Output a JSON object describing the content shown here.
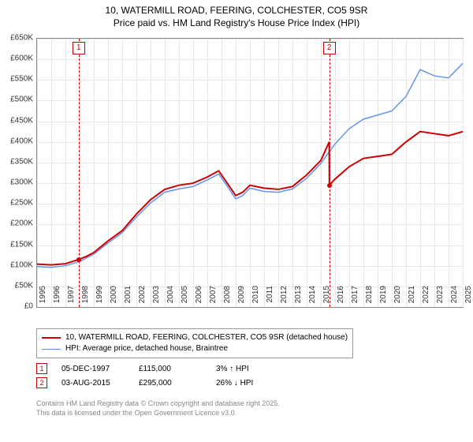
{
  "title_line1": "10, WATERMILL ROAD, FEERING, COLCHESTER, CO5 9SR",
  "title_line2": "Price paid vs. HM Land Registry's House Price Index (HPI)",
  "chart": {
    "type": "line",
    "background_color": "#ffffff",
    "grid_color": "#e8e8e8",
    "border_color": "#888888",
    "ylim": [
      0,
      650000
    ],
    "ytick_step": 50000,
    "yticks": [
      "£0",
      "£50K",
      "£100K",
      "£150K",
      "£200K",
      "£250K",
      "£300K",
      "£350K",
      "£400K",
      "£450K",
      "£500K",
      "£550K",
      "£600K",
      "£650K"
    ],
    "xlim": [
      1995,
      2025
    ],
    "xticks": [
      1995,
      1996,
      1997,
      1998,
      1999,
      2000,
      2001,
      2002,
      2003,
      2004,
      2005,
      2006,
      2007,
      2008,
      2009,
      2010,
      2011,
      2012,
      2013,
      2014,
      2015,
      2016,
      2017,
      2018,
      2019,
      2020,
      2021,
      2022,
      2023,
      2024,
      2025
    ],
    "label_fontsize": 10,
    "title_fontsize": 12,
    "line_width_price": 2,
    "line_width_hpi": 1.5,
    "series": {
      "price_paid": {
        "color": "#cc0000",
        "label": "10, WATERMILL ROAD, FEERING, COLCHESTER, CO5 9SR (detached house)",
        "points": [
          [
            1995.0,
            104000
          ],
          [
            1996.0,
            102000
          ],
          [
            1997.0,
            105000
          ],
          [
            1997.93,
            115000
          ],
          [
            1998.5,
            123000
          ],
          [
            1999.0,
            132000
          ],
          [
            2000.0,
            160000
          ],
          [
            2001.0,
            185000
          ],
          [
            2002.0,
            225000
          ],
          [
            2003.0,
            260000
          ],
          [
            2004.0,
            285000
          ],
          [
            2005.0,
            295000
          ],
          [
            2006.0,
            300000
          ],
          [
            2007.0,
            315000
          ],
          [
            2007.8,
            330000
          ],
          [
            2008.3,
            305000
          ],
          [
            2009.0,
            270000
          ],
          [
            2009.5,
            278000
          ],
          [
            2010.0,
            295000
          ],
          [
            2011.0,
            288000
          ],
          [
            2012.0,
            285000
          ],
          [
            2013.0,
            292000
          ],
          [
            2014.0,
            320000
          ],
          [
            2015.0,
            355000
          ],
          [
            2015.59,
            400000
          ],
          [
            2015.6,
            295000
          ],
          [
            2016.0,
            310000
          ],
          [
            2017.0,
            340000
          ],
          [
            2018.0,
            360000
          ],
          [
            2019.0,
            365000
          ],
          [
            2020.0,
            370000
          ],
          [
            2021.0,
            400000
          ],
          [
            2022.0,
            425000
          ],
          [
            2023.0,
            420000
          ],
          [
            2024.0,
            415000
          ],
          [
            2025.0,
            425000
          ]
        ]
      },
      "hpi": {
        "color": "#6495ed",
        "label": "HPI: Average price, detached house, Braintree",
        "points": [
          [
            1995.0,
            98000
          ],
          [
            1996.0,
            96000
          ],
          [
            1997.0,
            100000
          ],
          [
            1998.0,
            110000
          ],
          [
            1999.0,
            128000
          ],
          [
            2000.0,
            155000
          ],
          [
            2001.0,
            180000
          ],
          [
            2002.0,
            218000
          ],
          [
            2003.0,
            252000
          ],
          [
            2004.0,
            278000
          ],
          [
            2005.0,
            286000
          ],
          [
            2006.0,
            292000
          ],
          [
            2007.0,
            308000
          ],
          [
            2007.8,
            322000
          ],
          [
            2008.3,
            298000
          ],
          [
            2009.0,
            262000
          ],
          [
            2009.5,
            270000
          ],
          [
            2010.0,
            288000
          ],
          [
            2011.0,
            280000
          ],
          [
            2012.0,
            278000
          ],
          [
            2013.0,
            286000
          ],
          [
            2014.0,
            312000
          ],
          [
            2015.0,
            348000
          ],
          [
            2016.0,
            395000
          ],
          [
            2017.0,
            432000
          ],
          [
            2018.0,
            455000
          ],
          [
            2019.0,
            465000
          ],
          [
            2020.0,
            475000
          ],
          [
            2021.0,
            510000
          ],
          [
            2022.0,
            575000
          ],
          [
            2023.0,
            560000
          ],
          [
            2024.0,
            555000
          ],
          [
            2025.0,
            590000
          ]
        ]
      }
    },
    "markers": [
      {
        "n": "1",
        "year": 1997.93,
        "price": 115000
      },
      {
        "n": "2",
        "year": 2015.59,
        "price": 295000
      }
    ]
  },
  "sales": [
    {
      "n": "1",
      "date": "05-DEC-1997",
      "price": "£115,000",
      "delta": "3% ↑ HPI"
    },
    {
      "n": "2",
      "date": "03-AUG-2015",
      "price": "£295,000",
      "delta": "26% ↓ HPI"
    }
  ],
  "footer_line1": "Contains HM Land Registry data © Crown copyright and database right 2025.",
  "footer_line2": "This data is licensed under the Open Government Licence v3.0."
}
